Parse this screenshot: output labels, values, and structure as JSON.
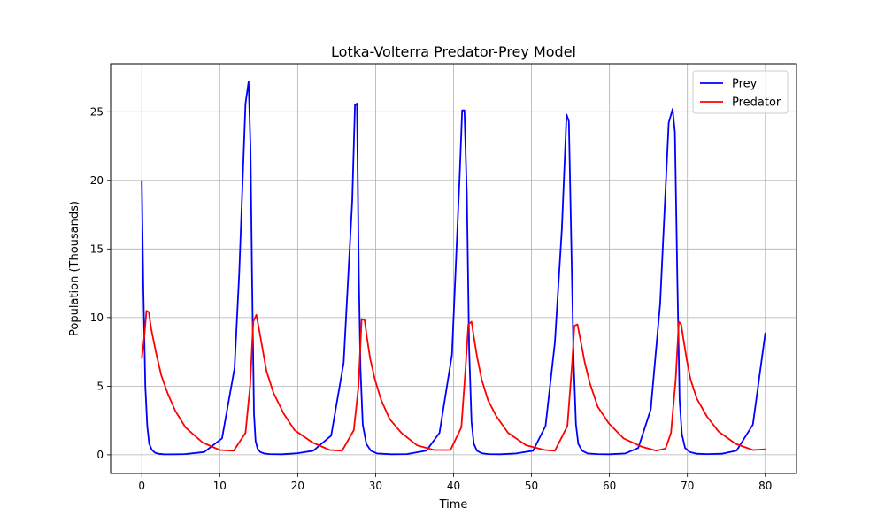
{
  "chart_data": {
    "type": "line",
    "title": "Lotka-Volterra Predator-Prey Model",
    "xlabel": "Time",
    "ylabel": "Population (Thousands)",
    "xlim": [
      -4,
      84
    ],
    "ylim": [
      -1.36,
      28.5
    ],
    "xticks": [
      0,
      10,
      20,
      30,
      40,
      50,
      60,
      70,
      80
    ],
    "yticks": [
      0,
      5,
      10,
      15,
      20,
      25
    ],
    "grid": true,
    "legend_position": "top-right",
    "series": [
      {
        "name": "Prey",
        "color": "#0000ff",
        "x": [
          0,
          0.2,
          0.45,
          0.7,
          0.95,
          1.3,
          1.7,
          2.2,
          2.8,
          4,
          5.5,
          8,
          10.3,
          11.9,
          12.5,
          13.3,
          13.7,
          13.95,
          14.15,
          14.4,
          14.6,
          14.85,
          15.2,
          15.7,
          16.4,
          18,
          20,
          22,
          24.3,
          25.9,
          27,
          27.35,
          27.6,
          27.85,
          28.05,
          28.35,
          28.8,
          29.4,
          30.2,
          32,
          34,
          36.5,
          38.2,
          39.8,
          40.8,
          41.1,
          41.4,
          41.7,
          42,
          42.3,
          42.6,
          43,
          43.6,
          44.5,
          46,
          48,
          50.2,
          51.8,
          53,
          53.9,
          54.5,
          54.8,
          55.1,
          55.4,
          55.7,
          56,
          56.5,
          57.2,
          58.5,
          60,
          62,
          63.7,
          65.3,
          66.5,
          67.6,
          68.1,
          68.4,
          68.7,
          69,
          69.3,
          69.7,
          70.3,
          71.2,
          72.5,
          74.4,
          76.3,
          78.4,
          80
        ],
        "y": [
          20,
          12,
          5,
          2.1,
          0.8,
          0.35,
          0.15,
          0.07,
          0.04,
          0.03,
          0.05,
          0.2,
          1.2,
          6.3,
          13.2,
          25.6,
          27.2,
          22.3,
          13,
          3,
          1,
          0.45,
          0.2,
          0.1,
          0.05,
          0.04,
          0.12,
          0.3,
          1.4,
          6.7,
          18.5,
          25.5,
          25.6,
          13,
          6.3,
          2.2,
          0.8,
          0.3,
          0.1,
          0.04,
          0.05,
          0.3,
          1.6,
          7.3,
          20.5,
          25.1,
          25.1,
          19,
          7.7,
          2.4,
          0.8,
          0.3,
          0.12,
          0.05,
          0.04,
          0.1,
          0.3,
          2.1,
          8.2,
          16.5,
          24.8,
          24.3,
          15.5,
          7,
          2.2,
          0.8,
          0.3,
          0.1,
          0.05,
          0.04,
          0.1,
          0.5,
          3.3,
          11,
          24.2,
          25.2,
          23.5,
          13,
          4,
          1.5,
          0.5,
          0.2,
          0.08,
          0.05,
          0.08,
          0.3,
          2.2,
          8.9
        ]
      },
      {
        "name": "Predator",
        "color": "#ff0000",
        "x": [
          0,
          0.3,
          0.6,
          0.9,
          1.2,
          1.8,
          2.5,
          3.3,
          4.3,
          5.6,
          7.8,
          10,
          11.8,
          13.3,
          13.9,
          14.3,
          14.7,
          15,
          15.4,
          16,
          16.9,
          18.2,
          19.6,
          21.9,
          24.1,
          25.7,
          27.2,
          27.8,
          28.2,
          28.6,
          28.9,
          29.3,
          29.9,
          30.7,
          31.8,
          33.3,
          35.3,
          37.5,
          39.6,
          41,
          41.5,
          41.9,
          42.3,
          42.6,
          43,
          43.6,
          44.4,
          45.5,
          47,
          49.3,
          51.7,
          53,
          54.6,
          55.2,
          55.5,
          55.9,
          56.3,
          56.8,
          57.5,
          58.5,
          59.9,
          61.8,
          64.1,
          66,
          67.2,
          67.9,
          68.5,
          68.9,
          69.2,
          69.5,
          69.9,
          70.4,
          71.2,
          72.5,
          74,
          76.2,
          78.4,
          80
        ],
        "y": [
          7,
          8.5,
          10.5,
          10.4,
          9.2,
          7.5,
          5.8,
          4.5,
          3.2,
          2,
          0.9,
          0.35,
          0.3,
          1.6,
          5,
          9.7,
          10.2,
          9.3,
          8,
          6.1,
          4.5,
          3,
          1.8,
          0.9,
          0.35,
          0.3,
          1.8,
          5,
          9.9,
          9.8,
          8.5,
          7,
          5.5,
          4,
          2.6,
          1.6,
          0.7,
          0.35,
          0.35,
          2,
          6,
          9.5,
          9.7,
          8.6,
          7.2,
          5.5,
          4,
          2.8,
          1.6,
          0.7,
          0.35,
          0.3,
          2.1,
          6.6,
          9.4,
          9.5,
          8.3,
          6.8,
          5.2,
          3.5,
          2.3,
          1.2,
          0.6,
          0.3,
          0.45,
          1.6,
          5.5,
          9.7,
          9.5,
          8.4,
          7,
          5.5,
          4.1,
          2.8,
          1.7,
          0.8,
          0.35,
          0.4
        ]
      }
    ]
  }
}
